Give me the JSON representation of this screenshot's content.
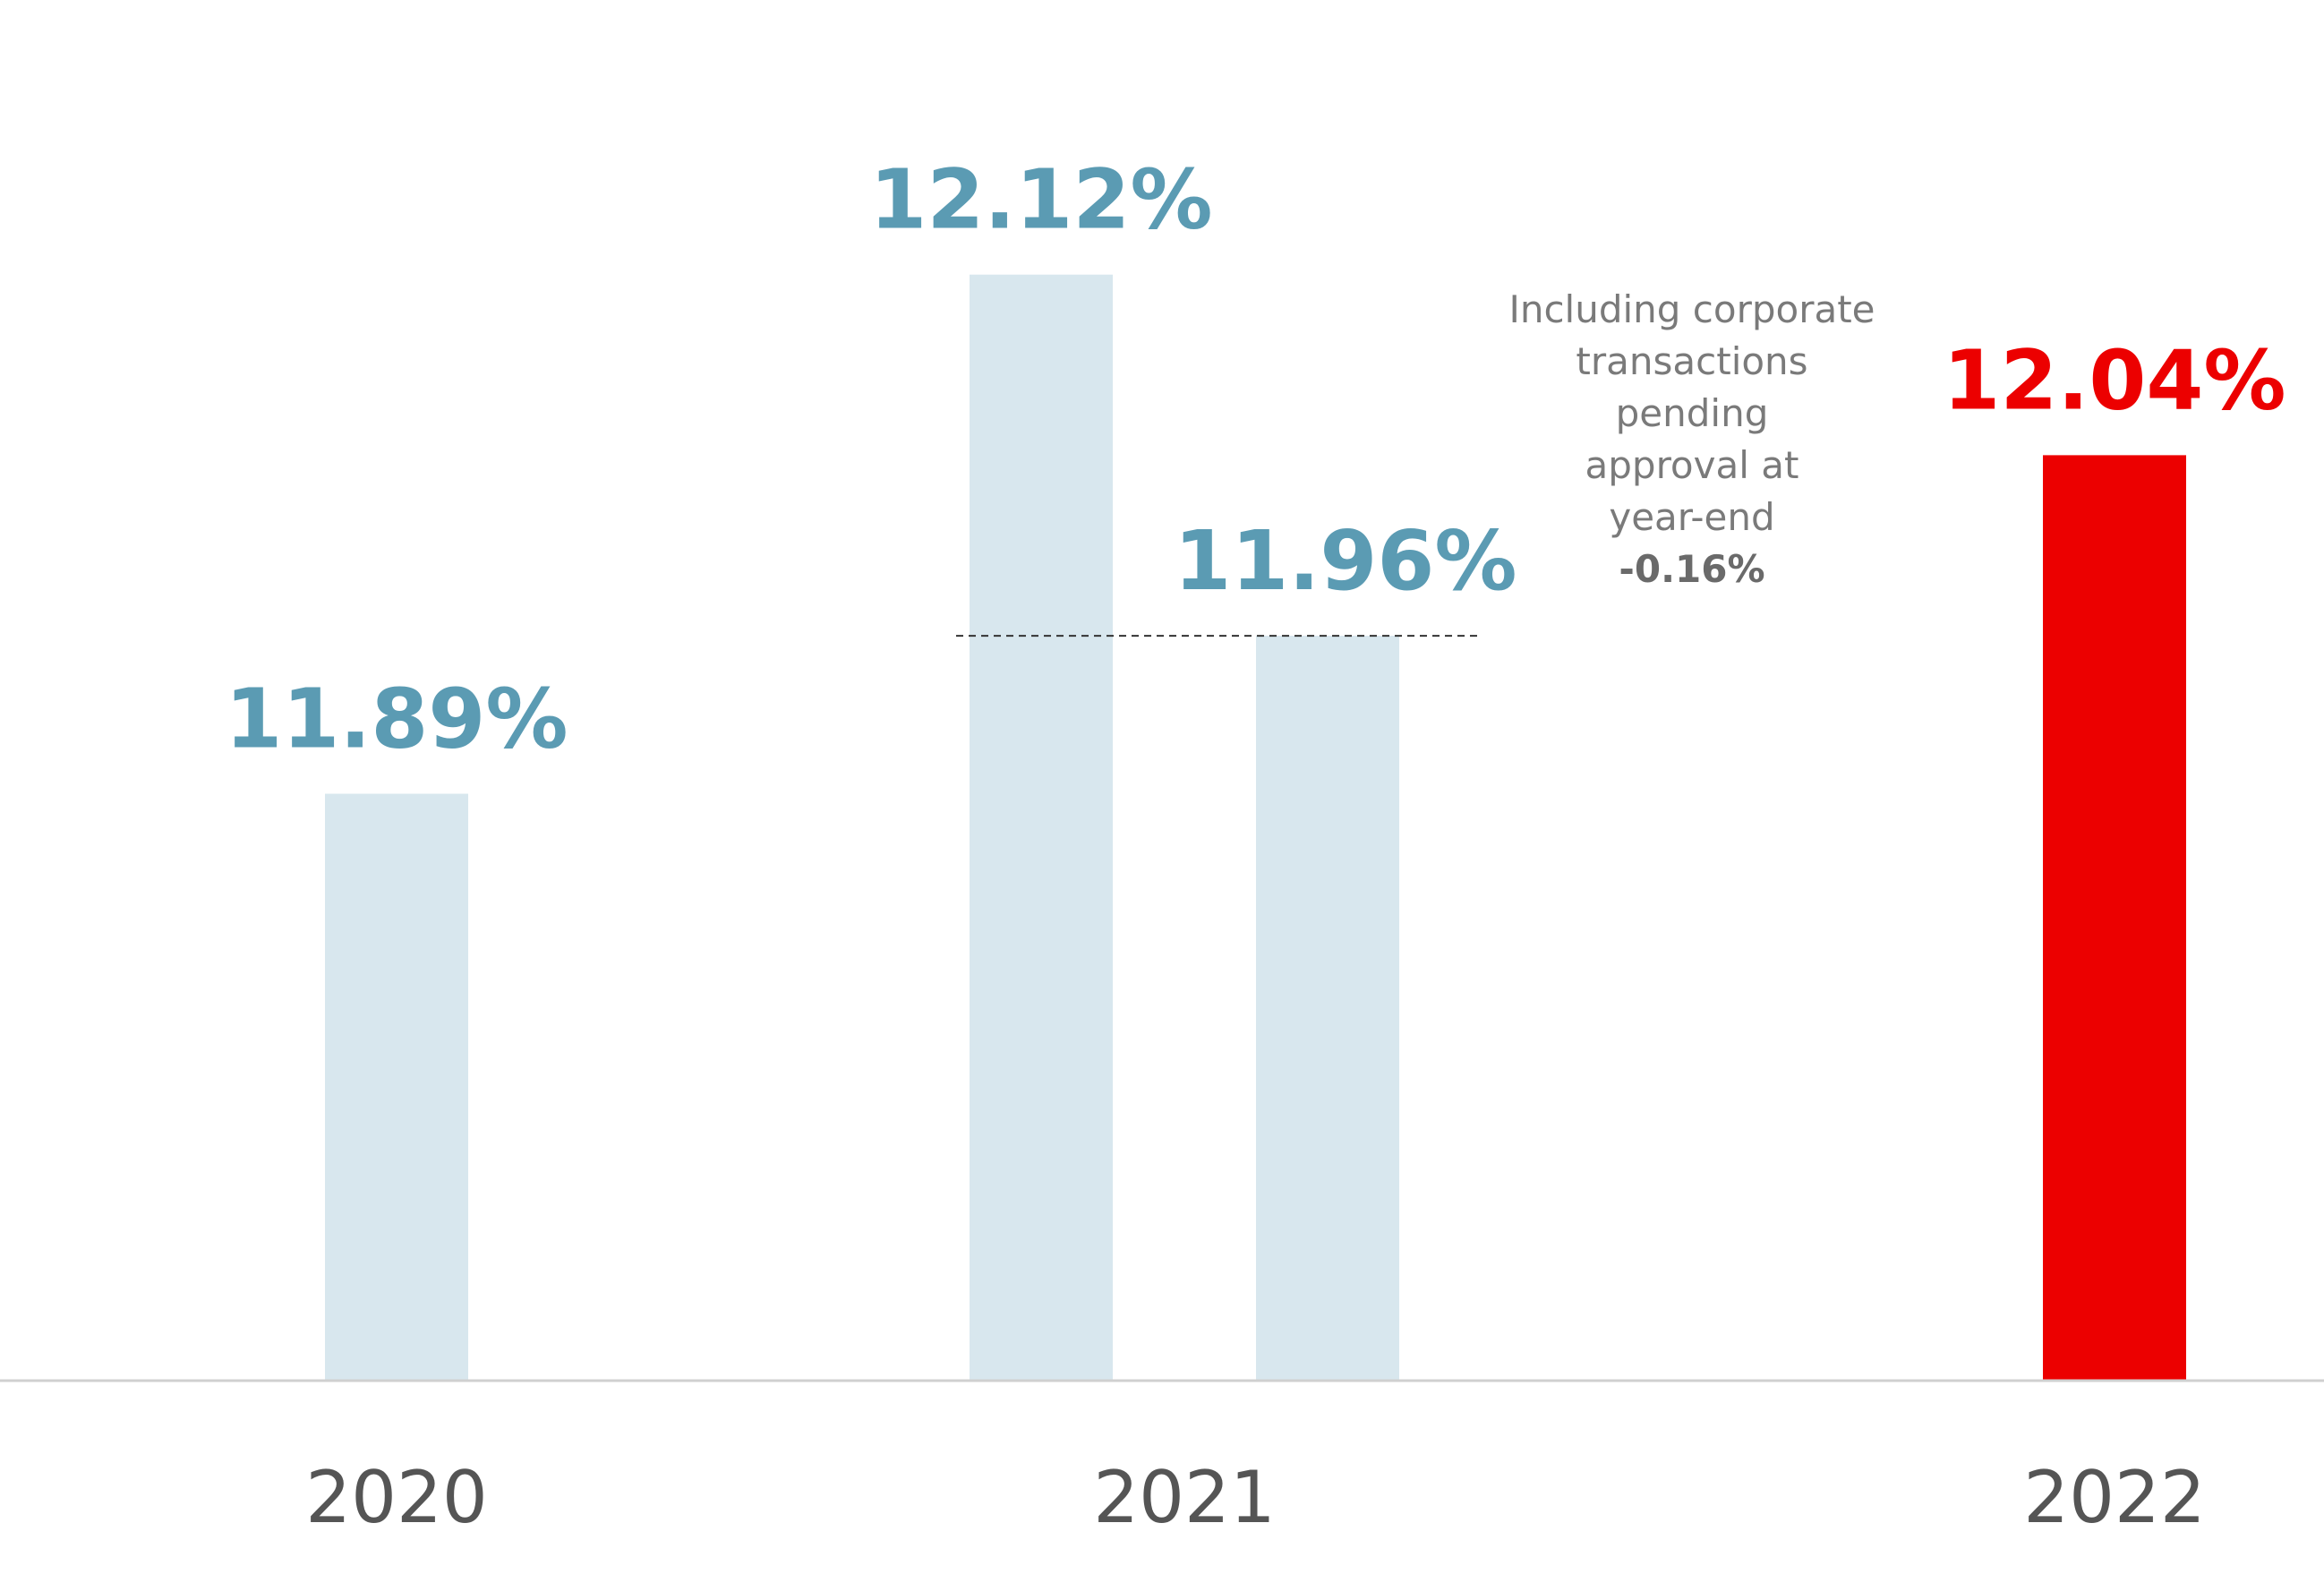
{
  "chart_data": {
    "type": "bar",
    "title": "",
    "categories": [
      "2020",
      "2021",
      "2021",
      "2022"
    ],
    "x_axis_labels": [
      "2020",
      "2021",
      "2022"
    ],
    "values": [
      11.89,
      12.12,
      11.96,
      12.04
    ],
    "value_labels": [
      "11.89%",
      "12.12%",
      "11.96%",
      "12.04%"
    ],
    "annotation": {
      "lines": [
        "Including corporate",
        "transactions",
        "pending",
        "approval at",
        "year-end"
      ],
      "delta": "-0.16%"
    },
    "colors": {
      "historical_bar": "#d8e7ee",
      "historical_label": "#5b9bb3",
      "current_bar": "#ec0000",
      "current_label": "#ec0000",
      "year_label": "#555555",
      "annotation_text": "#7a7a7a",
      "annotation_delta": "#6a6a6a",
      "baseline": "#d0d0d0",
      "dashed_line": "#333333"
    }
  }
}
